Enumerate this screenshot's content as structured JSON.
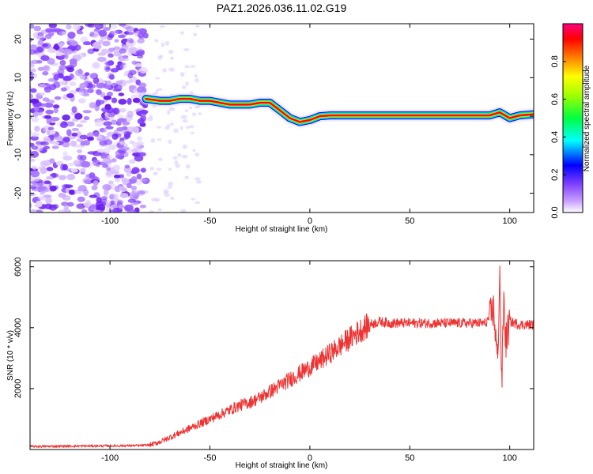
{
  "title": "PAZ1.2026.036.11.02.G19",
  "chart_data": [
    {
      "type": "heatmap",
      "name": "spectrogram",
      "xlabel": "Height of straight line (km)",
      "ylabel": "Frequency (Hz)",
      "xlim": [
        -140,
        112
      ],
      "ylim": [
        -25,
        24
      ],
      "xticks": [
        -100,
        -50,
        0,
        50,
        100
      ],
      "yticks": [
        -20,
        -10,
        0,
        10,
        20
      ],
      "noise_region_x": [
        -140,
        -80
      ],
      "ridge": {
        "x": [
          -82,
          -75,
          -70,
          -65,
          -60,
          -55,
          -50,
          -45,
          -40,
          -35,
          -30,
          -25,
          -20,
          -15,
          -10,
          -5,
          0,
          5,
          10,
          50,
          90,
          95,
          100,
          105,
          112
        ],
        "y": [
          4.5,
          4,
          4,
          4.5,
          4.5,
          4,
          4,
          3.5,
          3,
          3,
          3,
          3.5,
          3.5,
          1.5,
          -0.5,
          -1.5,
          -1,
          0,
          0.2,
          0.2,
          0.2,
          1,
          -0.5,
          0.2,
          0.5
        ]
      },
      "colorbar": {
        "label": "Normalized spectral amplitude",
        "range": [
          0,
          1
        ],
        "ticks": [
          "0.0",
          "0.2",
          "0.4",
          "0.6",
          "0.8"
        ],
        "colors": [
          "#ffffff",
          "#a070ff",
          "#0000ff",
          "#00ffff",
          "#00ff00",
          "#ffff00",
          "#ff8000",
          "#ff0000",
          "#ff00a0"
        ]
      }
    },
    {
      "type": "line",
      "name": "snr",
      "xlabel": "Height of straight line (km)",
      "ylabel": "SNR (10 * v/v)",
      "xlim": [
        -140,
        112
      ],
      "ylim": [
        0,
        6200
      ],
      "xticks": [
        -100,
        -50,
        0,
        50,
        100
      ],
      "yticks": [
        2000,
        4000,
        6000
      ],
      "color": "#ee3333",
      "series": [
        {
          "name": "SNR",
          "x": [
            -140,
            -120,
            -100,
            -85,
            -80,
            -75,
            -70,
            -65,
            -60,
            -55,
            -50,
            -45,
            -40,
            -35,
            -30,
            -25,
            -20,
            -15,
            -10,
            -5,
            0,
            5,
            10,
            15,
            20,
            25,
            30,
            35,
            40,
            50,
            60,
            70,
            80,
            88,
            92,
            94,
            95,
            96,
            97,
            98,
            100,
            105,
            112
          ],
          "values": [
            100,
            110,
            120,
            130,
            150,
            250,
            400,
            550,
            700,
            850,
            1000,
            1150,
            1300,
            1450,
            1550,
            1700,
            1900,
            2100,
            2300,
            2500,
            2700,
            2900,
            3150,
            3400,
            3650,
            3900,
            4100,
            4200,
            4150,
            4150,
            4150,
            4150,
            4150,
            4150,
            4600,
            2800,
            6000,
            2000,
            5000,
            3500,
            4200,
            4100,
            4100
          ]
        }
      ]
    }
  ]
}
